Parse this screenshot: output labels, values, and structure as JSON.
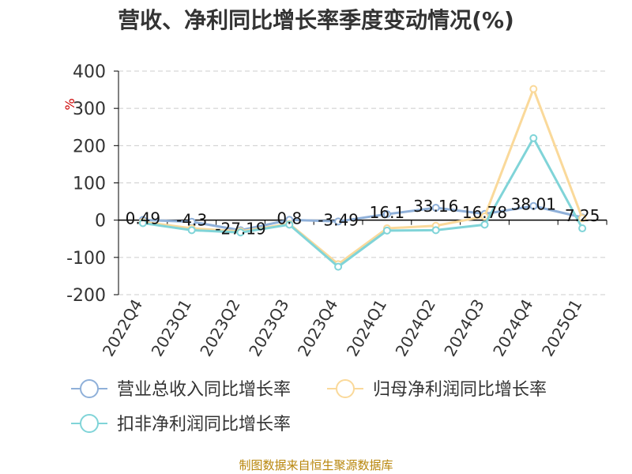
{
  "title": "营收、净利同比增长率季度变动情况(%)",
  "source": "制图数据来自恒生聚源数据库",
  "colors": {
    "revenue": "#8fb0d9",
    "net_profit": "#fad99a",
    "deducted_profit": "#80d4d8",
    "axis": "#000000",
    "grid": "#cccccc",
    "unit": "#cc0000"
  },
  "chart_data": {
    "type": "line",
    "unit": "%",
    "ylim": [
      -200,
      400
    ],
    "yticks": [
      400,
      300,
      200,
      100,
      0,
      -100,
      -200
    ],
    "grid": true,
    "legend_position": "bottom-left",
    "categories": [
      "2022Q4",
      "2023Q1",
      "2023Q2",
      "2023Q3",
      "2023Q4",
      "2024Q1",
      "2024Q2",
      "2024Q3",
      "2024Q4",
      "2025Q1"
    ],
    "series": [
      {
        "name": "营业总收入同比增长率",
        "values": [
          0.49,
          -4.3,
          -27.19,
          0.8,
          -3.49,
          16.1,
          33.16,
          16.78,
          38.01,
          7.25
        ],
        "labels": [
          "0.49",
          "-4.3",
          "-27.19",
          "0.8",
          "-3.49",
          "16.1",
          "33.16",
          "16.78",
          "38.01",
          "7.25"
        ]
      },
      {
        "name": "归母净利润同比增长率",
        "values": [
          -5,
          -22,
          -30,
          -10,
          -118,
          -22,
          -15,
          10,
          352,
          5
        ]
      },
      {
        "name": "扣非净利润同比增长率",
        "values": [
          -8,
          -27,
          -33,
          -12,
          -125,
          -28,
          -27,
          -12,
          220,
          -22
        ]
      }
    ]
  }
}
